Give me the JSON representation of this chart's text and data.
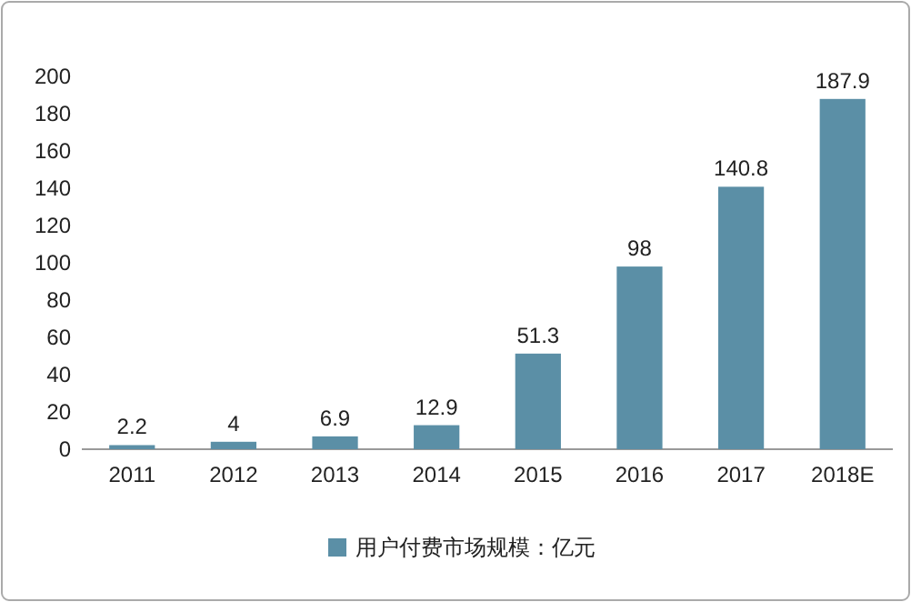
{
  "chart_data": {
    "type": "bar",
    "categories": [
      "2011",
      "2012",
      "2013",
      "2014",
      "2015",
      "2016",
      "2017",
      "2018E"
    ],
    "series": [
      {
        "name": "用户付费市场规模：亿元",
        "color": "#5b8fa6",
        "values": [
          2.2,
          4,
          6.9,
          12.9,
          51.3,
          98,
          140.8,
          187.9
        ]
      }
    ],
    "ylim": [
      0,
      200
    ],
    "yticks": [
      0,
      20,
      40,
      60,
      80,
      100,
      120,
      140,
      160,
      180,
      200
    ],
    "grid": false,
    "legend": "bottom",
    "data_labels": true
  }
}
